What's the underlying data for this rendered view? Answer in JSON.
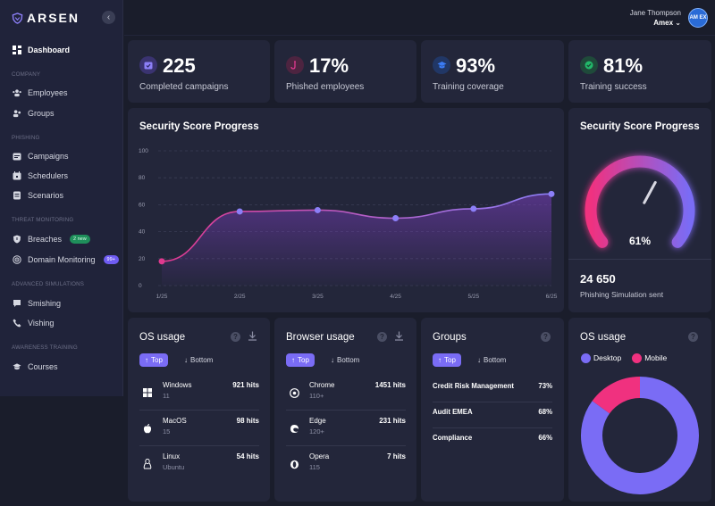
{
  "brand": {
    "logo_text": "ARSEN"
  },
  "header": {
    "user_name": "Jane Thompson",
    "org": "Amex",
    "avatar_text": "AM EX"
  },
  "sidebar": {
    "dashboard": "Dashboard",
    "sections": {
      "company": "COMPANY",
      "phishing": "PHISHING",
      "threat": "THREAT MONITORING",
      "advanced": "ADVANCED SIMULATIONS",
      "awareness": "AWARENESS TRAINING"
    },
    "items": {
      "employees": "Employees",
      "groups": "Groups",
      "campaigns": "Campaigns",
      "schedulers": "Schedulers",
      "scenarios": "Scenarios",
      "breaches": "Breaches",
      "breaches_badge": "2 new",
      "domain_monitoring": "Domain Monitoring",
      "domain_badge": "99+",
      "smishing": "Smishing",
      "vishing": "Vishing",
      "courses": "Courses"
    }
  },
  "stats": [
    {
      "value": "225",
      "label": "Completed campaigns",
      "color": "#6f5cf2"
    },
    {
      "value": "17%",
      "label": "Phished employees",
      "color": "#e0398f"
    },
    {
      "value": "93%",
      "label": "Training coverage",
      "color": "#3b7cf5"
    },
    {
      "value": "81%",
      "label": "Training success",
      "color": "#22b96a"
    }
  ],
  "score_chart": {
    "title": "Security Score Progress",
    "chart_data": {
      "type": "area",
      "title": "Security Score Progress",
      "x": [
        "1/25",
        "2/25",
        "3/25",
        "4/25",
        "5/25",
        "6/25"
      ],
      "values": [
        18,
        55,
        56,
        50,
        57,
        68
      ],
      "ylim": [
        0,
        100
      ],
      "yticks": [
        0,
        20,
        40,
        60,
        80,
        100
      ]
    }
  },
  "gauge": {
    "title": "Security Score Progress",
    "value": 61,
    "value_label": "61%",
    "simulations": "24 650",
    "simulations_label": "Phishing Simulation sent"
  },
  "os_usage": {
    "title": "OS usage",
    "top_label": "Top",
    "bottom_label": "Bottom",
    "rows": [
      {
        "name": "Windows",
        "version": "11",
        "hits": "921 hits"
      },
      {
        "name": "MacOS",
        "version": "15",
        "hits": "98 hits"
      },
      {
        "name": "Linux",
        "version": "Ubuntu",
        "hits": "54 hits"
      }
    ]
  },
  "browser_usage": {
    "title": "Browser usage",
    "top_label": "Top",
    "bottom_label": "Bottom",
    "rows": [
      {
        "name": "Chrome",
        "version": "110+",
        "hits": "1451 hits"
      },
      {
        "name": "Edge",
        "version": "120+",
        "hits": "231 hits"
      },
      {
        "name": "Opera",
        "version": "115",
        "hits": "7 hits"
      }
    ]
  },
  "groups": {
    "title": "Groups",
    "top_label": "Top",
    "bottom_label": "Bottom",
    "rows": [
      {
        "name": "Credit Risk Management",
        "value": "73%"
      },
      {
        "name": "Audit EMEA",
        "value": "68%"
      },
      {
        "name": "Compliance",
        "value": "66%"
      }
    ]
  },
  "os_donut": {
    "title": "OS usage",
    "chart_data": {
      "type": "pie",
      "labels": [
        "Desktop",
        "Mobile"
      ],
      "values": [
        85,
        15
      ],
      "colors": [
        "#7a6cf5",
        "#f0317f"
      ]
    }
  }
}
